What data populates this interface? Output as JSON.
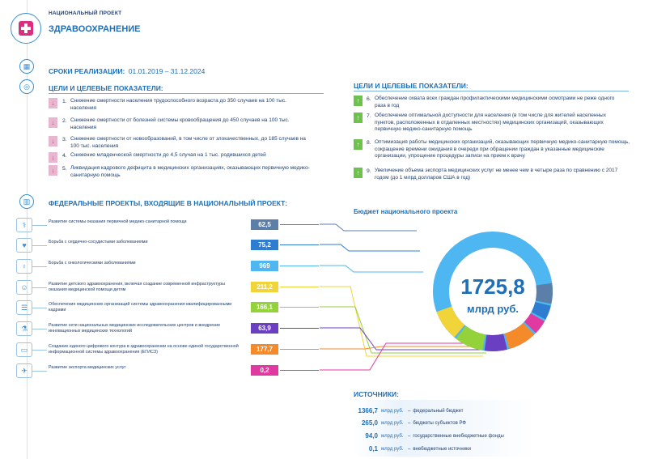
{
  "header": {
    "kicker": "НАЦИОНАЛЬНЫЙ ПРОЕКТ",
    "title": "ЗДРАВООХРАНЕНИЕ"
  },
  "period": {
    "label": "СРОКИ РЕАЛИЗАЦИИ:",
    "value": "01.01.2019 – 31.12.2024"
  },
  "goals_left": {
    "title": "ЦЕЛИ И ЦЕЛЕВЫЕ ПОКАЗАТЕЛИ:",
    "items": [
      {
        "num": "1.",
        "text": "Снижение смертности населения трудоспособного возраста до 350 случаев на 100 тыс. населения"
      },
      {
        "num": "2.",
        "text": "Снижение смертности от болезней системы кровообращения до 450 случаев на 100 тыс. населения"
      },
      {
        "num": "3.",
        "text": "Снижение смертности от новообразований, в том числе от злокачественных, до 185 случаев на 100 тыс. населения"
      },
      {
        "num": "4.",
        "text": "Снижение младенческой смертности до 4,5 случая на 1 тыс. родившихся детей"
      },
      {
        "num": "5.",
        "text": "Ликвидация кадрового дефицита в медицинских организациях, оказывающих первичную медико-санитарную помощь"
      }
    ]
  },
  "goals_right": {
    "title": "ЦЕЛИ И ЦЕЛЕВЫЕ ПОКАЗАТЕЛИ:",
    "items": [
      {
        "num": "6.",
        "text": "Обеспечение охвата всех граждан профилактическими медицинскими осмотрами не реже одного раза в год"
      },
      {
        "num": "7.",
        "text": "Обеспечение оптимальной доступности для населения (в том числе для жителей населенных пунктов, расположенных в отдаленных местностях) медицинских организаций, оказывающих первичную медико-санитарную помощь"
      },
      {
        "num": "8.",
        "text": "Оптимизация работы медицинских организаций, оказывающих первичную медико-санитарную помощь, сокращение времени ожидания в очереди при обращении граждан в указанные медицинские организации, упрощение процедуры записи на прием к врачу"
      },
      {
        "num": "9.",
        "text": "Увеличение объема экспорта медицинских услуг не менее чем в четыре раза по сравнению с 2017 годом (до 1 млрд долларов США в год)"
      }
    ]
  },
  "federal": {
    "title": "ФЕДЕРАЛЬНЫЕ ПРОЕКТЫ, ВХОДЯЩИЕ В НАЦИОНАЛЬНЫЙ ПРОЕКТ:",
    "items": [
      {
        "label": "Развитие системы оказания первичной медико-санитарной помощи",
        "value": "62,5",
        "amount": 62.5,
        "color": "#5b7fa8",
        "icon": "doctor-icon"
      },
      {
        "label": "Борьба с сердечно-сосудистыми заболеваниями",
        "value": "75,2",
        "amount": 75.2,
        "color": "#2e7dd1",
        "icon": "heart-icon"
      },
      {
        "label": "Борьба с онкологическими заболеваниями",
        "value": "969",
        "amount": 969,
        "color": "#4eb6f0",
        "icon": "ribbon-icon"
      },
      {
        "label": "Развитие детского здравоохранения, включая создание современной инфраструктуры оказания медицинской помощи детям",
        "value": "211,2",
        "amount": 211.2,
        "color": "#f0d43a",
        "icon": "child-icon"
      },
      {
        "label": "Обеспечение медицинских организаций системы здравоохранения квалифицированными кадрами",
        "value": "166,1",
        "amount": 166.1,
        "color": "#93d23b",
        "icon": "staff-icon"
      },
      {
        "label": "Развитие сети национальных медицинских исследовательских центров и внедрение инновационных медицинских технологий",
        "value": "63,9",
        "amount": 63.9,
        "color": "#6b3fc2",
        "icon": "lab-icon"
      },
      {
        "label": "Создание единого цифрового контура в здравоохранении на основе единой государственной информационной системы здравоохранения (ЕГИСЗ)",
        "value": "177,7",
        "amount": 177.7,
        "color": "#f58a2a",
        "icon": "computer-icon"
      },
      {
        "label": "Развитие экспорта медицинских услуг",
        "value": "0,2",
        "amount": 0.2,
        "color": "#e03aa0",
        "icon": "export-icon"
      }
    ]
  },
  "budget": {
    "title": "Бюджет национального проекта",
    "total": "1725,8",
    "unit": "млрд руб."
  },
  "sources": {
    "title": "ИСТОЧНИКИ:",
    "items": [
      {
        "value": "1366,7",
        "unit": "млрд руб.",
        "label": "федеральный бюджет"
      },
      {
        "value": "265,0",
        "unit": "млрд руб.",
        "label": "бюджеты субъектов РФ"
      },
      {
        "value": "94,0",
        "unit": "млрд руб.",
        "label": "государственные внебюджетные фонды"
      },
      {
        "value": "0,1",
        "unit": "млрд руб.",
        "label": "внебюджетные источники"
      }
    ]
  },
  "colors": {
    "accent": "#1f6fb6",
    "pink": "#d92f7e",
    "green": "#6cc24a",
    "ring": "#4eb6f0"
  }
}
